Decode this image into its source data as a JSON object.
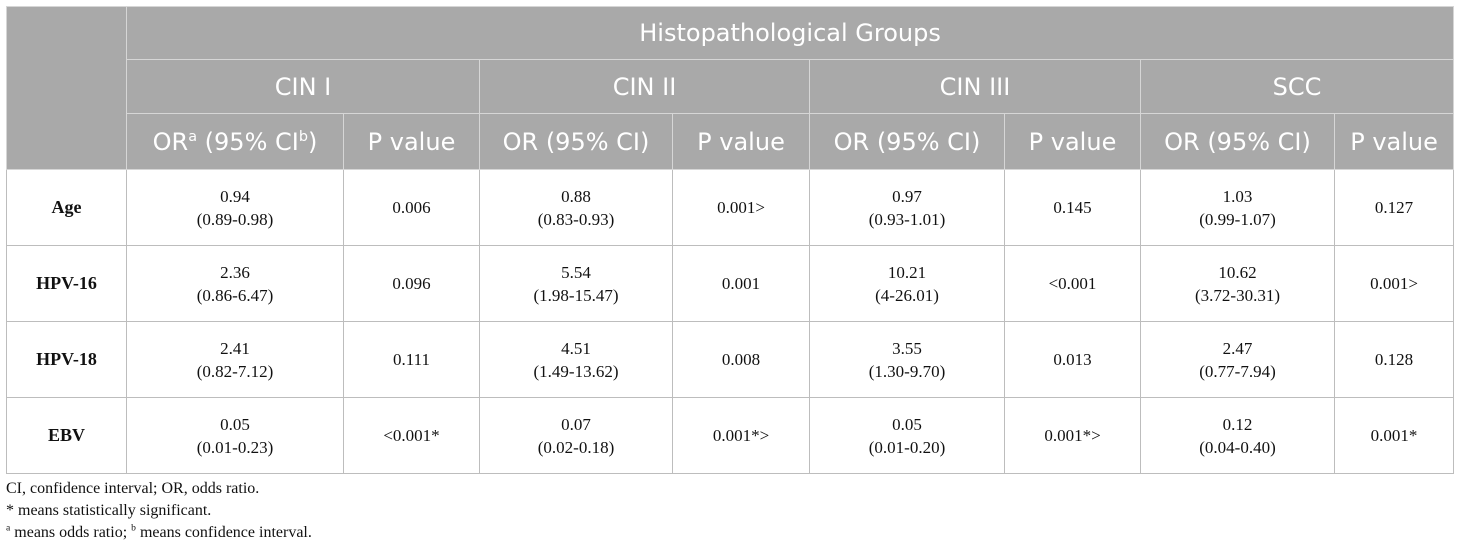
{
  "group_header": "Histopathological Groups",
  "groups": [
    "CIN I",
    "CIN II",
    "CIN III",
    "SCC"
  ],
  "subheaders": {
    "first": {
      "pre": "OR",
      "sup_a": "a",
      "mid": " (95% CI",
      "sup_b": "b",
      "post": ")"
    },
    "or_ci": "OR (95% CI)",
    "p_value": "P value"
  },
  "rows": [
    {
      "label": "Age",
      "cells": [
        {
          "or": "0.94",
          "ci": "(0.89-0.98)",
          "p": "0.006"
        },
        {
          "or": "0.88",
          "ci": "(0.83-0.93)",
          "p": "0.001>"
        },
        {
          "or": "0.97",
          "ci": "(0.93-1.01)",
          "p": "0.145"
        },
        {
          "or": "1.03",
          "ci": "(0.99-1.07)",
          "p": "0.127"
        }
      ]
    },
    {
      "label": "HPV-16",
      "cells": [
        {
          "or": "2.36",
          "ci": "(0.86-6.47)",
          "p": "0.096"
        },
        {
          "or": "5.54",
          "ci": "(1.98-15.47)",
          "p": "0.001"
        },
        {
          "or": "10.21",
          "ci": "(4-26.01)",
          "p": "<0.001"
        },
        {
          "or": "10.62",
          "ci": "(3.72-30.31)",
          "p": "0.001>"
        }
      ]
    },
    {
      "label": "HPV-18",
      "cells": [
        {
          "or": "2.41",
          "ci": "(0.82-7.12)",
          "p": "0.111"
        },
        {
          "or": "4.51",
          "ci": "(1.49-13.62)",
          "p": "0.008"
        },
        {
          "or": "3.55",
          "ci": "(1.30-9.70)",
          "p": "0.013"
        },
        {
          "or": "2.47",
          "ci": "(0.77-7.94)",
          "p": "0.128"
        }
      ]
    },
    {
      "label": "EBV",
      "cells": [
        {
          "or": "0.05",
          "ci": "(0.01-0.23)",
          "p": "<0.001*"
        },
        {
          "or": "0.07",
          "ci": "(0.02-0.18)",
          "p": "0.001*>"
        },
        {
          "or": "0.05",
          "ci": "(0.01-0.20)",
          "p": "0.001*>"
        },
        {
          "or": "0.12",
          "ci": "(0.04-0.40)",
          "p": "0.001*"
        }
      ]
    }
  ],
  "footnotes": {
    "abbrev": "CI, confidence interval; OR, odds ratio.",
    "star": "* means statistically significant.",
    "sup_a": "a",
    "text_a": " means odds ratio; ",
    "sup_b": "b",
    "text_b": " means confidence interval."
  }
}
